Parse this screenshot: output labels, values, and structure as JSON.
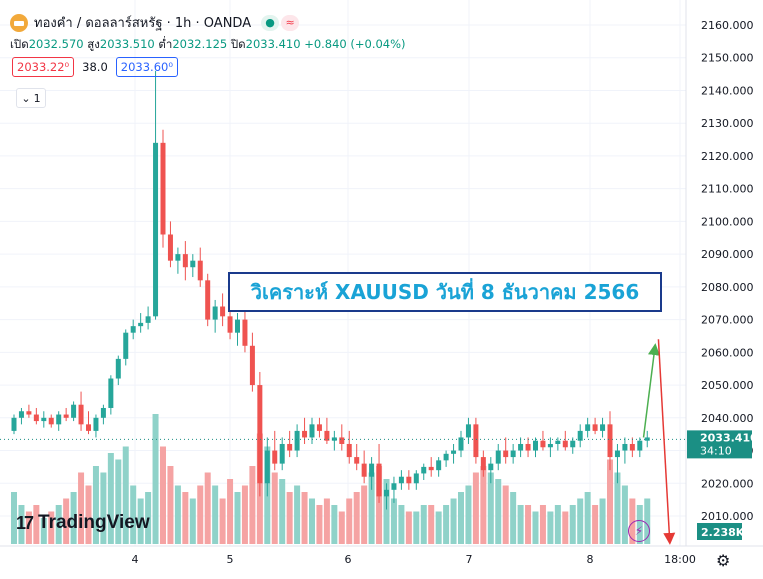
{
  "header": {
    "symbol_title": "ทองคำ / ดอลลาร์สหรัฐ · 1h · OANDA",
    "live_icon": "●",
    "wave_icon": "≈"
  },
  "ohlc": {
    "open_label": "เปิด",
    "open": "2032.570",
    "high_label": "สูง",
    "high": "2033.510",
    "low_label": "ต่ำ",
    "low": "2032.125",
    "close_label": "ปิด",
    "close": "2033.410",
    "change": "+0.840 (+0.04%)"
  },
  "quote": {
    "sell": "2033.22⁰",
    "spread": "38.0",
    "buy": "2033.60⁰"
  },
  "indicator_toggle": {
    "label": "1"
  },
  "banner": {
    "text": "วิเคราะห์ XAUUSD วันที่ 8 ธันวาคม 2566"
  },
  "branding": {
    "logo_mark": "17",
    "logo_text": "TradingView"
  },
  "axes": {
    "price_ticks": [
      "2160.000",
      "2150.000",
      "2140.000",
      "2130.000",
      "2120.000",
      "2110.000",
      "2100.000",
      "2090.000",
      "2080.000",
      "2070.000",
      "2060.000",
      "2050.000",
      "2040.000",
      "2030.000",
      "2020.000",
      "2010.000"
    ],
    "last_price_label": "2033.410",
    "countdown_label": "34:10",
    "volume_label": "2.238K",
    "time_ticks": [
      "4",
      "5",
      "6",
      "7",
      "8",
      "18:00"
    ]
  },
  "colors": {
    "up": "#26a69a",
    "down": "#ef5350",
    "vol_up": "#8fd2c9",
    "vol_down": "#f5a3a3",
    "last_price_bg": "#1b8f84",
    "banner_text": "#1aa3d6",
    "banner_border": "#1a3a8c"
  },
  "chart_data": {
    "type": "candlestick",
    "y_range": [
      2003,
      2166
    ],
    "x_ticks": [
      "4",
      "5",
      "6",
      "7",
      "8",
      "18:00"
    ],
    "last_price": 2033.41,
    "candles": [
      [
        2036,
        2041,
        2035,
        2040,
        0.4
      ],
      [
        2040,
        2043,
        2038,
        2042,
        0.3
      ],
      [
        2042,
        2044,
        2040,
        2041,
        0.25
      ],
      [
        2041,
        2043,
        2038,
        2039,
        0.3
      ],
      [
        2039,
        2042,
        2037,
        2040,
        0.2
      ],
      [
        2040,
        2041,
        2037,
        2038,
        0.25
      ],
      [
        2038,
        2042,
        2036,
        2041,
        0.3
      ],
      [
        2041,
        2043,
        2039,
        2040,
        0.35
      ],
      [
        2040,
        2045,
        2039,
        2044,
        0.4
      ],
      [
        2044,
        2048,
        2036,
        2038,
        0.55
      ],
      [
        2038,
        2042,
        2035,
        2036,
        0.45
      ],
      [
        2036,
        2041,
        2034,
        2040,
        0.6
      ],
      [
        2040,
        2044,
        2038,
        2043,
        0.55
      ],
      [
        2043,
        2053,
        2041,
        2052,
        0.7
      ],
      [
        2052,
        2059,
        2050,
        2058,
        0.65
      ],
      [
        2058,
        2067,
        2056,
        2066,
        0.75
      ],
      [
        2066,
        2070,
        2064,
        2068,
        0.45
      ],
      [
        2068,
        2072,
        2066,
        2069,
        0.35
      ],
      [
        2069,
        2074,
        2067,
        2071,
        0.4
      ],
      [
        2071,
        2146,
        2070,
        2124,
        1.0
      ],
      [
        2124,
        2128,
        2092,
        2096,
        0.75
      ],
      [
        2096,
        2100,
        2086,
        2088,
        0.6
      ],
      [
        2088,
        2092,
        2084,
        2090,
        0.45
      ],
      [
        2090,
        2094,
        2082,
        2086,
        0.4
      ],
      [
        2086,
        2090,
        2083,
        2088,
        0.35
      ],
      [
        2088,
        2092,
        2080,
        2082,
        0.45
      ],
      [
        2082,
        2084,
        2068,
        2070,
        0.55
      ],
      [
        2070,
        2076,
        2066,
        2074,
        0.45
      ],
      [
        2074,
        2078,
        2068,
        2071,
        0.35
      ],
      [
        2071,
        2076,
        2064,
        2066,
        0.5
      ],
      [
        2066,
        2072,
        2062,
        2070,
        0.4
      ],
      [
        2070,
        2074,
        2060,
        2062,
        0.45
      ],
      [
        2062,
        2066,
        2048,
        2050,
        0.6
      ],
      [
        2050,
        2054,
        2016,
        2020,
        0.85
      ],
      [
        2020,
        2034,
        2016,
        2030,
        0.75
      ],
      [
        2030,
        2036,
        2024,
        2026,
        0.55
      ],
      [
        2026,
        2034,
        2024,
        2032,
        0.5
      ],
      [
        2032,
        2036,
        2028,
        2030,
        0.4
      ],
      [
        2030,
        2038,
        2028,
        2036,
        0.45
      ],
      [
        2036,
        2040,
        2032,
        2034,
        0.4
      ],
      [
        2034,
        2040,
        2032,
        2038,
        0.35
      ],
      [
        2038,
        2040,
        2034,
        2036,
        0.3
      ],
      [
        2036,
        2040,
        2032,
        2033,
        0.35
      ],
      [
        2033,
        2036,
        2030,
        2034,
        0.3
      ],
      [
        2034,
        2038,
        2030,
        2032,
        0.25
      ],
      [
        2032,
        2036,
        2026,
        2028,
        0.35
      ],
      [
        2028,
        2032,
        2024,
        2026,
        0.4
      ],
      [
        2026,
        2030,
        2020,
        2022,
        0.45
      ],
      [
        2022,
        2028,
        2018,
        2026,
        0.55
      ],
      [
        2026,
        2032,
        2014,
        2016,
        0.6
      ],
      [
        2016,
        2020,
        2012,
        2018,
        0.5
      ],
      [
        2018,
        2022,
        2014,
        2020,
        0.35
      ],
      [
        2020,
        2024,
        2018,
        2022,
        0.3
      ],
      [
        2022,
        2024,
        2018,
        2020,
        0.25
      ],
      [
        2020,
        2024,
        2018,
        2023,
        0.25
      ],
      [
        2023,
        2026,
        2021,
        2025,
        0.3
      ],
      [
        2025,
        2028,
        2022,
        2024,
        0.3
      ],
      [
        2024,
        2028,
        2022,
        2027,
        0.25
      ],
      [
        2027,
        2030,
        2025,
        2029,
        0.3
      ],
      [
        2029,
        2032,
        2026,
        2030,
        0.35
      ],
      [
        2030,
        2036,
        2028,
        2034,
        0.4
      ],
      [
        2034,
        2040,
        2032,
        2038,
        0.45
      ],
      [
        2038,
        2040,
        2026,
        2028,
        0.55
      ],
      [
        2028,
        2030,
        2022,
        2024,
        0.6
      ],
      [
        2024,
        2028,
        2020,
        2026,
        0.55
      ],
      [
        2026,
        2032,
        2024,
        2030,
        0.5
      ],
      [
        2030,
        2034,
        2026,
        2028,
        0.45
      ],
      [
        2028,
        2032,
        2026,
        2030,
        0.4
      ],
      [
        2030,
        2034,
        2028,
        2032,
        0.3
      ],
      [
        2032,
        2034,
        2028,
        2030,
        0.3
      ],
      [
        2030,
        2034,
        2028,
        2033,
        0.25
      ],
      [
        2033,
        2036,
        2030,
        2031,
        0.3
      ],
      [
        2031,
        2034,
        2028,
        2032,
        0.25
      ],
      [
        2032,
        2034,
        2030,
        2033,
        0.3
      ],
      [
        2033,
        2036,
        2030,
        2031,
        0.25
      ],
      [
        2031,
        2034,
        2029,
        2033,
        0.3
      ],
      [
        2033,
        2038,
        2031,
        2036,
        0.35
      ],
      [
        2036,
        2040,
        2034,
        2038,
        0.4
      ],
      [
        2038,
        2040,
        2035,
        2036,
        0.3
      ],
      [
        2036,
        2040,
        2034,
        2038,
        0.35
      ],
      [
        2038,
        2042,
        2024,
        2028,
        0.65
      ],
      [
        2028,
        2032,
        2020,
        2030,
        0.55
      ],
      [
        2030,
        2034,
        2026,
        2032,
        0.45
      ],
      [
        2032,
        2034,
        2028,
        2030,
        0.35
      ],
      [
        2030,
        2034,
        2028,
        2033,
        0.3
      ],
      [
        2033,
        2036,
        2031,
        2034,
        0.35
      ]
    ],
    "arrows": [
      {
        "color": "green",
        "from": [
          84.5,
          2034
        ],
        "to": [
          86,
          2061
        ]
      },
      {
        "color": "red",
        "from": [
          86.5,
          2064
        ],
        "to": [
          88,
          2003
        ]
      }
    ]
  }
}
